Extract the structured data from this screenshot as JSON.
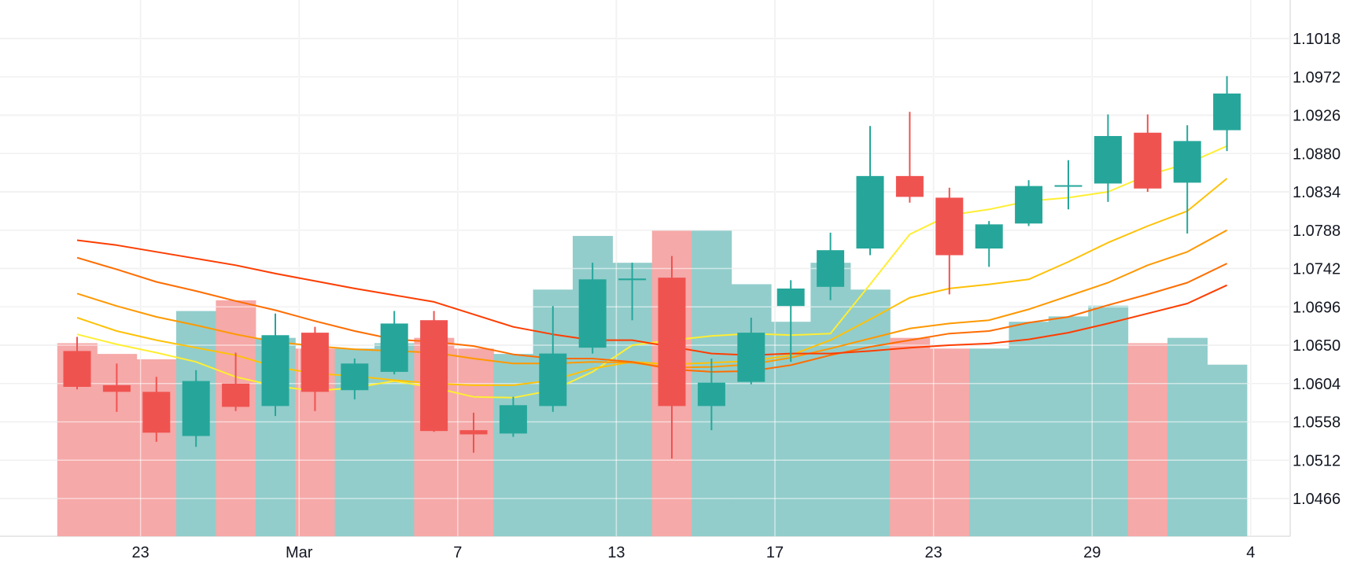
{
  "chart_data": {
    "type": "candlestick",
    "grid": true,
    "y_axis": {
      "position": "right",
      "ticks": [
        "1.1018",
        "1.0972",
        "1.0926",
        "1.0880",
        "1.0834",
        "1.0788",
        "1.0742",
        "1.0696",
        "1.0650",
        "1.0604",
        "1.0558",
        "1.0512",
        "1.0466"
      ]
    },
    "x_axis": {
      "ticks": [
        {
          "label": "23",
          "index": 1.6
        },
        {
          "label": "Mar",
          "index": 5.6
        },
        {
          "label": "7",
          "index": 9.6
        },
        {
          "label": "13",
          "index": 13.6
        },
        {
          "label": "17",
          "index": 17.6
        },
        {
          "label": "23",
          "index": 21.6
        },
        {
          "label": "29",
          "index": 25.6
        },
        {
          "label": "4",
          "index": 29.6
        }
      ]
    },
    "colors": {
      "up": "#26a69a",
      "down": "#ef5350",
      "up_volume": "#92cdcb",
      "down_volume": "#f5a9a8",
      "grid": "#e0e0e0",
      "ma": [
        "#ffee33",
        "#ffc107",
        "#ff9800",
        "#ff6d00",
        "#ff3d00"
      ]
    },
    "candles": [
      {
        "o": 1.0643,
        "h": 1.066,
        "l": 1.0597,
        "c": 1.06
      },
      {
        "o": 1.0602,
        "h": 1.0628,
        "l": 1.057,
        "c": 1.0594
      },
      {
        "o": 1.0594,
        "h": 1.0612,
        "l": 1.0534,
        "c": 1.0545
      },
      {
        "o": 1.0541,
        "h": 1.062,
        "l": 1.0528,
        "c": 1.0607
      },
      {
        "o": 1.0604,
        "h": 1.0641,
        "l": 1.0571,
        "c": 1.0576
      },
      {
        "o": 1.0577,
        "h": 1.0688,
        "l": 1.0565,
        "c": 1.0662
      },
      {
        "o": 1.0665,
        "h": 1.0672,
        "l": 1.0571,
        "c": 1.0594
      },
      {
        "o": 1.0596,
        "h": 1.0634,
        "l": 1.0585,
        "c": 1.0628
      },
      {
        "o": 1.0618,
        "h": 1.0691,
        "l": 1.0615,
        "c": 1.0676
      },
      {
        "o": 1.068,
        "h": 1.0691,
        "l": 1.0546,
        "c": 1.0547
      },
      {
        "o": 1.0548,
        "h": 1.0569,
        "l": 1.0521,
        "c": 1.0543
      },
      {
        "o": 1.0544,
        "h": 1.0588,
        "l": 1.054,
        "c": 1.0578
      },
      {
        "o": 1.0577,
        "h": 1.0697,
        "l": 1.057,
        "c": 1.064
      },
      {
        "o": 1.0647,
        "h": 1.0749,
        "l": 1.064,
        "c": 1.0729
      },
      {
        "o": 1.0728,
        "h": 1.0749,
        "l": 1.068,
        "c": 1.073
      },
      {
        "o": 1.0731,
        "h": 1.0757,
        "l": 1.0514,
        "c": 1.0577
      },
      {
        "o": 1.0577,
        "h": 1.0634,
        "l": 1.0548,
        "c": 1.0605
      },
      {
        "o": 1.0606,
        "h": 1.0683,
        "l": 1.0603,
        "c": 1.0665
      },
      {
        "o": 1.0697,
        "h": 1.0728,
        "l": 1.063,
        "c": 1.0718
      },
      {
        "o": 1.072,
        "h": 1.0785,
        "l": 1.0704,
        "c": 1.0764
      },
      {
        "o": 1.0766,
        "h": 1.0913,
        "l": 1.0758,
        "c": 1.0853
      },
      {
        "o": 1.0853,
        "h": 1.093,
        "l": 1.0821,
        "c": 1.0828
      },
      {
        "o": 1.0827,
        "h": 1.0839,
        "l": 1.0711,
        "c": 1.0758
      },
      {
        "o": 1.0766,
        "h": 1.0799,
        "l": 1.0744,
        "c": 1.0795
      },
      {
        "o": 1.0796,
        "h": 1.0848,
        "l": 1.0793,
        "c": 1.0841
      },
      {
        "o": 1.0841,
        "h": 1.0872,
        "l": 1.0813,
        "c": 1.0842
      },
      {
        "o": 1.0844,
        "h": 1.0927,
        "l": 1.0822,
        "c": 1.0901
      },
      {
        "o": 1.0905,
        "h": 1.0927,
        "l": 1.0834,
        "c": 1.0838
      },
      {
        "o": 1.0845,
        "h": 1.0914,
        "l": 1.0784,
        "c": 1.0895
      },
      {
        "o": 1.0908,
        "h": 1.0973,
        "l": 1.0883,
        "c": 1.0952
      }
    ],
    "volume": {
      "max": 100,
      "values": [
        36,
        34,
        33,
        42,
        44,
        37,
        35,
        35,
        36,
        37,
        35,
        34,
        46,
        56,
        51,
        57,
        57,
        47,
        40,
        51,
        46,
        37,
        35,
        35,
        40,
        41,
        43,
        36,
        37,
        32
      ]
    },
    "moving_averages": [
      {
        "period": 5,
        "start": 0,
        "values": [
          1.0663,
          1.0651,
          1.0641,
          1.063,
          1.0612,
          1.0601,
          1.0595,
          1.0599,
          1.0607,
          1.0599,
          1.0588,
          1.0587,
          1.0596,
          1.0618,
          1.065,
          1.0656,
          1.0661,
          1.0664,
          1.0662,
          1.0664,
          1.0723,
          1.0783,
          1.0806,
          1.0813,
          1.0823,
          1.0827,
          1.0834,
          1.0854,
          1.0868,
          1.0889
        ]
      },
      {
        "period": 10,
        "start": 0,
        "values": [
          1.0683,
          1.0667,
          1.0656,
          1.0647,
          1.0638,
          1.0624,
          1.0616,
          1.0613,
          1.0608,
          1.0604,
          1.0602,
          1.0602,
          1.0608,
          1.0622,
          1.063,
          1.0627,
          1.0629,
          1.0631,
          1.0638,
          1.0656,
          1.0681,
          1.0707,
          1.0718,
          1.0723,
          1.0729,
          1.075,
          1.0773,
          1.0793,
          1.0811,
          1.085
        ]
      },
      {
        "period": 20,
        "start": 0,
        "values": [
          1.0712,
          1.0697,
          1.0684,
          1.0674,
          1.0663,
          1.0654,
          1.0649,
          1.0645,
          1.0643,
          1.0641,
          1.0634,
          1.0628,
          1.0628,
          1.063,
          1.0629,
          1.0623,
          1.0624,
          1.0627,
          1.0635,
          1.0646,
          1.0658,
          1.067,
          1.0676,
          1.068,
          1.0693,
          1.0709,
          1.0725,
          1.0746,
          1.0762,
          1.0788
        ]
      },
      {
        "period": 30,
        "start": 0,
        "values": [
          1.0755,
          1.0741,
          1.0726,
          1.0715,
          1.0703,
          1.0692,
          1.0679,
          1.0667,
          1.0657,
          1.0654,
          1.0649,
          1.0639,
          1.0634,
          1.0634,
          1.063,
          1.0621,
          1.0618,
          1.0619,
          1.0626,
          1.0638,
          1.0648,
          1.0656,
          1.0664,
          1.0667,
          1.0677,
          1.0684,
          1.0698,
          1.0711,
          1.0725,
          1.0748
        ]
      },
      {
        "period": 40,
        "start": 0,
        "values": [
          1.0776,
          1.077,
          1.0762,
          1.0754,
          1.0746,
          1.0736,
          1.0727,
          1.0718,
          1.071,
          1.0702,
          1.0687,
          1.0672,
          1.0663,
          1.0656,
          1.0656,
          1.0648,
          1.064,
          1.0638,
          1.064,
          1.064,
          1.0643,
          1.0647,
          1.065,
          1.0652,
          1.0657,
          1.0665,
          1.0676,
          1.0688,
          1.07,
          1.0722
        ]
      }
    ]
  }
}
